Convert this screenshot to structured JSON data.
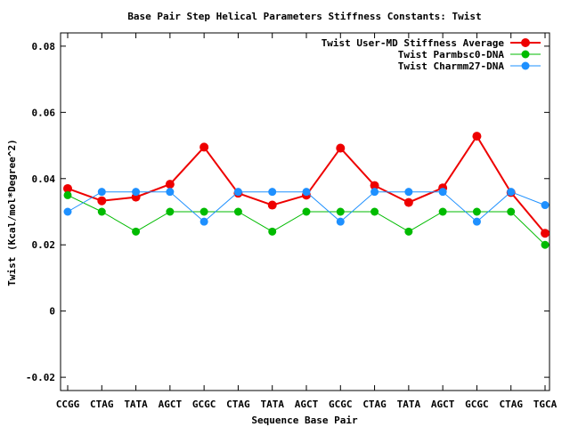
{
  "chart_data": {
    "type": "line",
    "title": "Base Pair Step Helical Parameters Stiffness Constants: Twist",
    "xlabel": "Sequence Base Pair",
    "ylabel": "Twist (Kcal/mol*Degree^2)",
    "categories": [
      "CCGG",
      "CTAG",
      "TATA",
      "AGCT",
      "GCGC",
      "CTAG",
      "TATA",
      "AGCT",
      "GCGC",
      "CTAG",
      "TATA",
      "AGCT",
      "GCGC",
      "CTAG",
      "TGCA"
    ],
    "ylim": [
      -0.024,
      0.084
    ],
    "yticks": [
      "-0.02",
      "0",
      "0.02",
      "0.04",
      "0.06",
      "0.08"
    ],
    "ytick_values": [
      -0.02,
      0,
      0.02,
      0.04,
      0.06,
      0.08
    ],
    "grid": false,
    "legend_position": "top-right",
    "series": [
      {
        "name": "Twist User-MD Stiffness Average",
        "color": "#ee0000",
        "values": [
          0.037,
          0.0333,
          0.0344,
          0.0383,
          0.0495,
          0.0356,
          0.032,
          0.035,
          0.0492,
          0.0379,
          0.0328,
          0.0372,
          0.0528,
          0.0358,
          0.0235
        ]
      },
      {
        "name": "Twist Parmbsc0-DNA",
        "color": "#00bb00",
        "values": [
          0.035,
          0.03,
          0.024,
          0.03,
          0.03,
          0.03,
          0.024,
          0.03,
          0.03,
          0.03,
          0.024,
          0.03,
          0.03,
          0.03,
          0.02
        ]
      },
      {
        "name": "Twist Charmm27-DNA",
        "color": "#1e90ff",
        "values": [
          0.03,
          0.036,
          0.036,
          0.036,
          0.027,
          0.036,
          0.036,
          0.036,
          0.027,
          0.036,
          0.036,
          0.036,
          0.027,
          0.036,
          0.032
        ]
      }
    ]
  }
}
